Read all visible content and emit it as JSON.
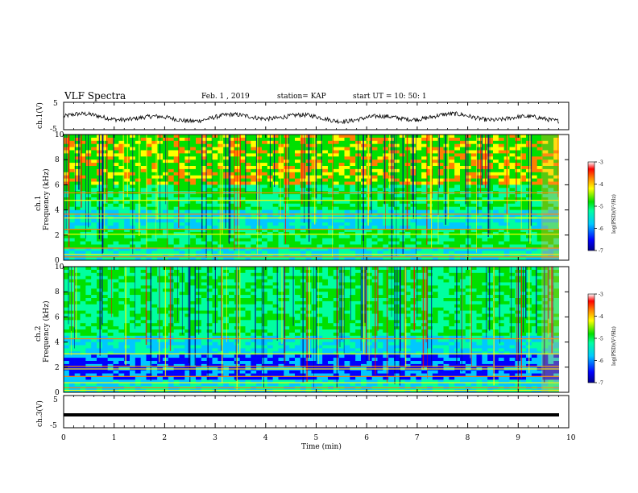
{
  "header": {
    "title": "VLF Spectra",
    "date": "Feb. 1 , 2019",
    "station": "station= KAP",
    "start": "start UT = 10: 50: 1"
  },
  "colors": {
    "spectrum": [
      "#00008b",
      "#0000ff",
      "#00c8ff",
      "#00ffa0",
      "#00e000",
      "#ffff00",
      "#ff8000",
      "#ff0000",
      "#b00000"
    ]
  },
  "chart_data": [
    {
      "type": "line",
      "panel": "ch1-waveform",
      "ylabel": "ch.1(V)",
      "yticks": [
        "5",
        "-5"
      ],
      "ylim": [
        -5,
        5
      ],
      "xlim": [
        0,
        10
      ],
      "note_values": "noisy waveform roughly between -2.5 and 1.5 V"
    },
    {
      "type": "heatmap",
      "panel": "ch1-spectrogram",
      "ylabel": "ch.1\nFrequency (kHz)",
      "yticks": [
        "0",
        "2",
        "4",
        "6",
        "8",
        "10"
      ],
      "ylim": [
        0,
        10
      ],
      "xlim": [
        0,
        10
      ],
      "colorbar": {
        "label": "log(PSD)(V²/Hz)",
        "ticks": [
          "-3",
          "-4",
          "-5",
          "-6",
          "-7"
        ],
        "range": [
          -7,
          -3
        ]
      }
    },
    {
      "type": "heatmap",
      "panel": "ch2-spectrogram",
      "ylabel": "ch.2\nFrequency (kHz)",
      "yticks": [
        "0",
        "2",
        "4",
        "6",
        "8",
        "10"
      ],
      "ylim": [
        0,
        10
      ],
      "xlim": [
        0,
        10
      ],
      "colorbar": {
        "label": "log(PSD)(V²/Hz)",
        "ticks": [
          "-3",
          "-4",
          "-5",
          "-6",
          "-7"
        ],
        "range": [
          -7,
          -3
        ]
      }
    },
    {
      "type": "line",
      "panel": "ch3-waveform",
      "ylabel": "ch.3(V)",
      "yticks": [
        "5",
        "-5"
      ],
      "ylim": [
        -5,
        5
      ],
      "xlim": [
        0,
        10
      ],
      "constant_value": -1
    }
  ],
  "xaxis": {
    "label": "Time (min)",
    "ticks": [
      "0",
      "1",
      "2",
      "3",
      "4",
      "5",
      "6",
      "7",
      "8",
      "9",
      "10"
    ]
  }
}
